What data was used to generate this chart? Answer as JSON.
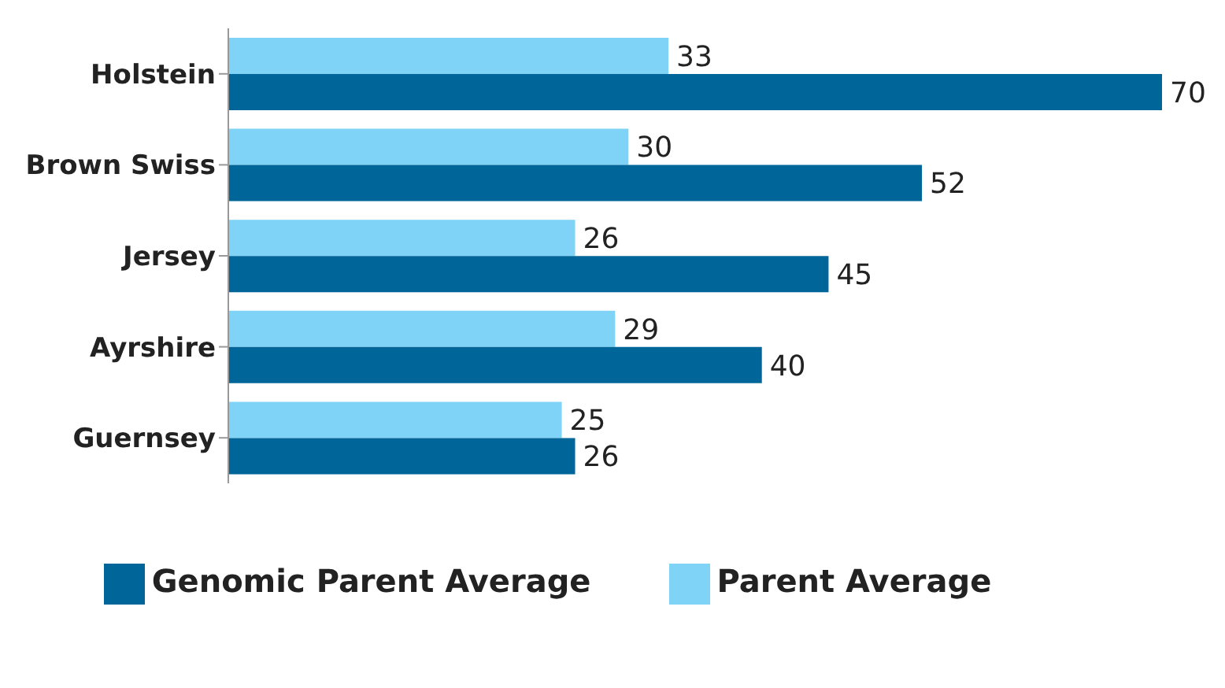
{
  "chart_data": {
    "type": "bar",
    "orientation": "horizontal",
    "categories": [
      "Holstein",
      "Brown Swiss",
      "Jersey",
      "Ayrshire",
      "Guernsey"
    ],
    "series": [
      {
        "name": "Parent Average",
        "color": "#7fd3f7",
        "values": [
          33,
          30,
          26,
          29,
          25
        ]
      },
      {
        "name": "Genomic Parent Average",
        "color": "#006699",
        "values": [
          70,
          52,
          45,
          40,
          26
        ]
      }
    ],
    "data_labels": true,
    "legend": "bottom",
    "grid": false
  }
}
